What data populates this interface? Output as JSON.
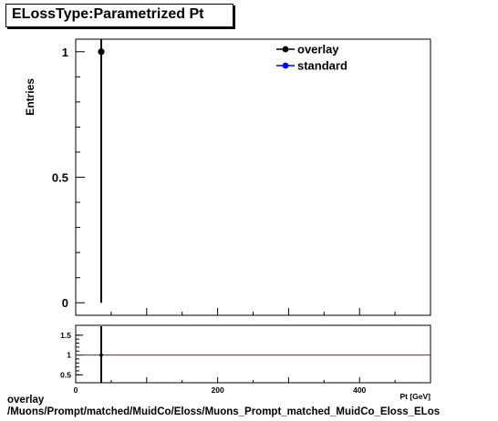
{
  "title": "ELossType:Parametrized Pt",
  "footer": {
    "line1": "overlay",
    "line2": "/Muons/Prompt/matched/MuidCo/Eloss/Muons_Prompt_matched_MuidCo_Eloss_ELos"
  },
  "chart_data": [
    {
      "type": "scatter",
      "title": "ELossType:Parametrized Pt",
      "xlabel": "Pt [GeV]",
      "ylabel": "Entries",
      "xlim": [
        0,
        500
      ],
      "ylim": [
        -0.05,
        1.05
      ],
      "yticks": [
        0,
        0.5,
        1
      ],
      "yticklabels": [
        "0",
        "0.5",
        "1"
      ],
      "legend_position": "top-right",
      "series": [
        {
          "name": "overlay",
          "color": "#000000",
          "points": [
            {
              "x": 36,
              "y": 1,
              "yerr_low": 1,
              "yerr_high": 0.15
            }
          ]
        },
        {
          "name": "standard",
          "color": "#0000ff",
          "points": []
        }
      ]
    },
    {
      "type": "line",
      "xlabel": "Pt [GeV]",
      "xlim": [
        0,
        500
      ],
      "ylim": [
        0.3,
        1.75
      ],
      "xticks": [
        0,
        200,
        400
      ],
      "xticklabels": [
        "0",
        "200",
        "400"
      ],
      "yticks": [
        0.5,
        1,
        1.5
      ],
      "yticklabels": [
        "0.5",
        "1",
        "1.5"
      ],
      "reference_line": {
        "y": 1,
        "color": "#cc0000"
      },
      "series": [
        {
          "name": "ratio",
          "color": "#000000",
          "points": [
            {
              "x": 36,
              "y": 1,
              "yerr_low": 1,
              "yerr_high": 1
            }
          ]
        }
      ]
    }
  ]
}
